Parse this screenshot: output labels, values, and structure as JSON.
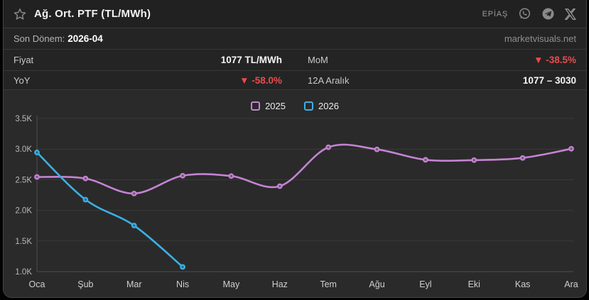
{
  "header": {
    "title": "Ağ. Ort. PTF (TL/MWh)",
    "source_label": "EPİAŞ"
  },
  "subheader": {
    "period_label": "Son Dönem:",
    "period_value": "2026-04",
    "watermark": "marketvisuals.net"
  },
  "stats": {
    "rows": [
      {
        "left_label": "Fiyat",
        "left_value": "1077 TL/MWh",
        "left_value_class": "stat-value",
        "right_label": "MoM",
        "right_value": "▼ -38.5%",
        "right_value_class": "stat-value red"
      },
      {
        "left_label": "YoY",
        "left_value": "▼ -58.0%",
        "left_value_class": "stat-value red",
        "right_label": "12A Aralık",
        "right_value": "1077 – 3030",
        "right_value_class": "stat-value"
      }
    ]
  },
  "colors": {
    "purple": "#c583d3",
    "cyan": "#3bb0e6",
    "red": "#e84c4c",
    "grid": "#3b3b3b",
    "axis": "#4d4d4d",
    "tick_text": "#b9b9b9",
    "xlabel_text": "#cfcfcf"
  },
  "chart_data": {
    "type": "line",
    "title": "Ağ. Ort. PTF (TL/MWh)",
    "categories": [
      "Oca",
      "Şub",
      "Mar",
      "Nis",
      "May",
      "Haz",
      "Tem",
      "Ağu",
      "Eyl",
      "Eki",
      "Kas",
      "Ara"
    ],
    "series": [
      {
        "name": "2025",
        "color": "#c583d3",
        "values": [
          2545,
          2520,
          2275,
          2565,
          2560,
          2395,
          3030,
          2995,
          2825,
          2820,
          2855,
          3005
        ]
      },
      {
        "name": "2026",
        "color": "#3bb0e6",
        "values": [
          2945,
          2175,
          1752,
          1077
        ]
      }
    ],
    "ylim": [
      1000,
      3500
    ],
    "yticks": [
      [
        1000,
        "1.0K"
      ],
      [
        1500,
        "1.5K"
      ],
      [
        2000,
        "2.0K"
      ],
      [
        2500,
        "2.5K"
      ],
      [
        3000,
        "3.0K"
      ],
      [
        3500,
        "3.5K"
      ]
    ],
    "grid": "horizontal",
    "legend_position": "top-center"
  }
}
